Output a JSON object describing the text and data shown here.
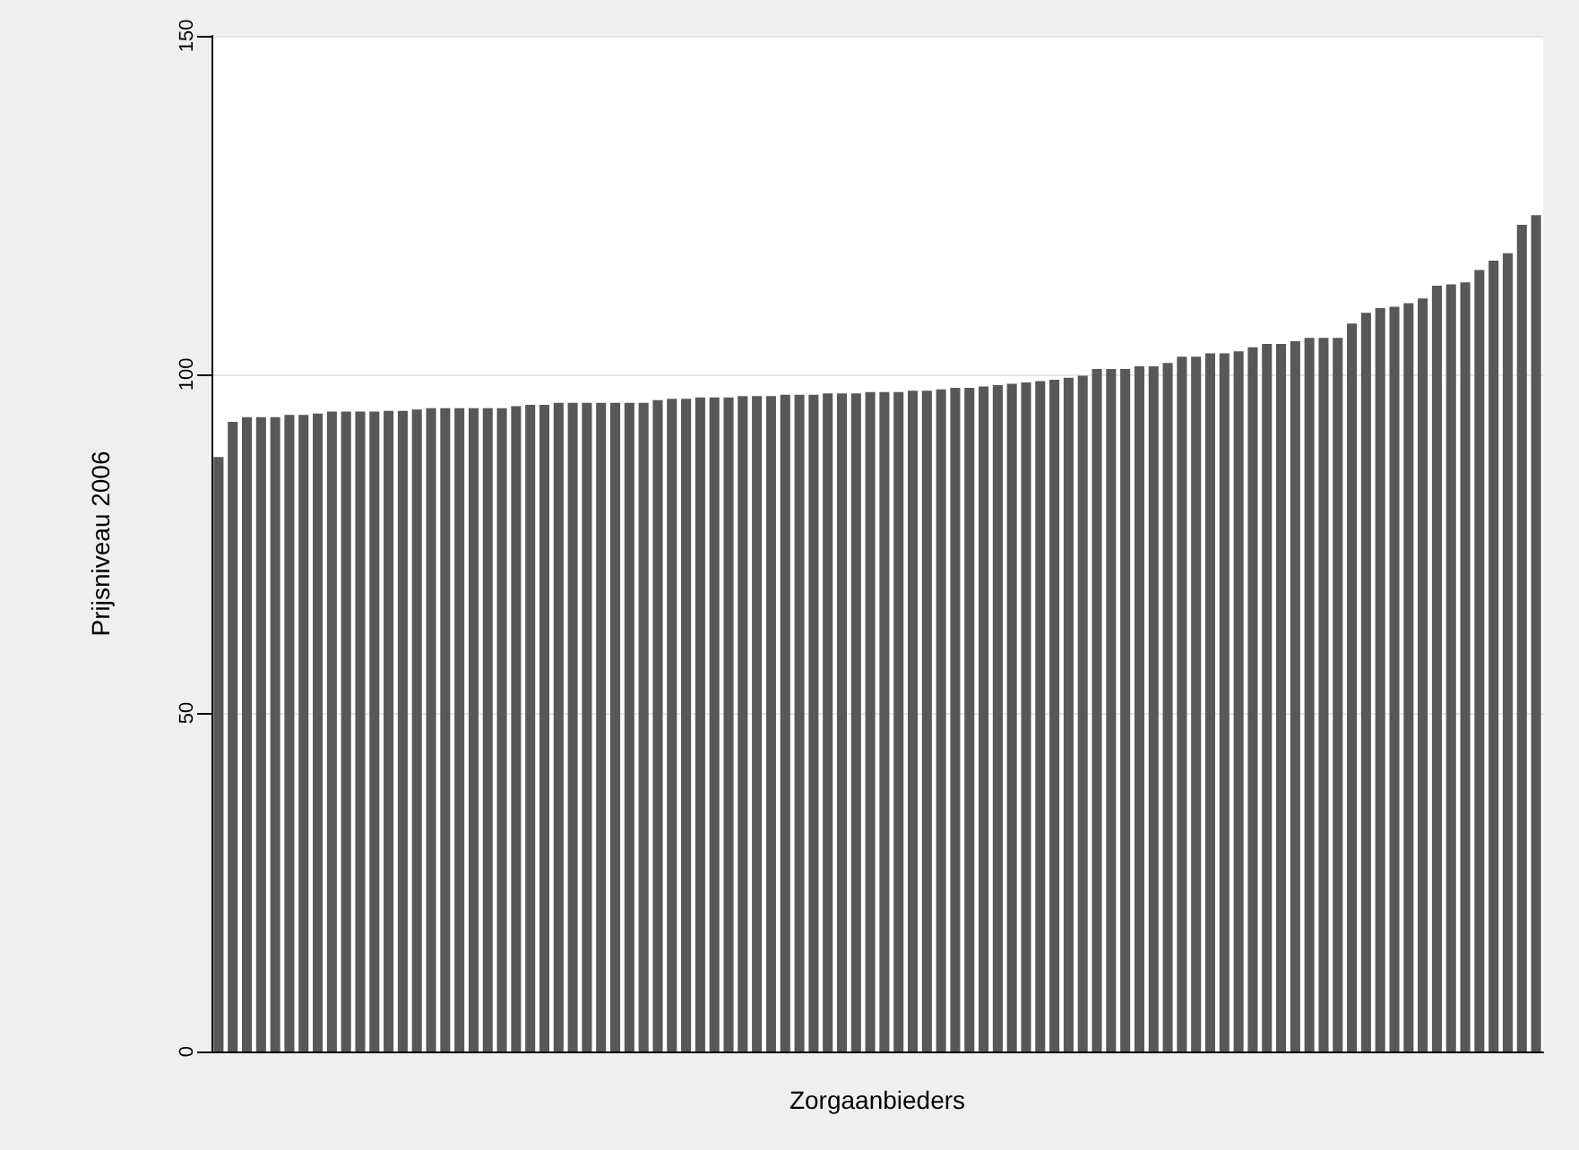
{
  "chart_data": {
    "type": "bar",
    "xlabel": "Zorgaanbieders",
    "ylabel": "Prijsniveau 2006",
    "categories": [
      null,
      null,
      null,
      null,
      null,
      null,
      null,
      null,
      null,
      null,
      null,
      null,
      null,
      null,
      null,
      null,
      null,
      null,
      null,
      null,
      null,
      null,
      null,
      null,
      null,
      null,
      null,
      null,
      null,
      null,
      null,
      null,
      null,
      null,
      null,
      null,
      null,
      null,
      null,
      null,
      null,
      null,
      null,
      null,
      null,
      null,
      null,
      null,
      null,
      null,
      null,
      null,
      null,
      null,
      null,
      null,
      null,
      null,
      null,
      null,
      null,
      null,
      null,
      null,
      null,
      null,
      null,
      null,
      null,
      null,
      null,
      null,
      null,
      null,
      null,
      null,
      null,
      null,
      null,
      null,
      null,
      null,
      null,
      null,
      null,
      null,
      null,
      null,
      null,
      null,
      null,
      null,
      null,
      null
    ],
    "values": [
      87.8,
      93.0,
      93.7,
      93.7,
      93.7,
      94.0,
      94.0,
      94.2,
      94.5,
      94.5,
      94.5,
      94.5,
      94.6,
      94.6,
      94.8,
      95.0,
      95.0,
      95.0,
      95.0,
      95.0,
      95.0,
      95.3,
      95.5,
      95.5,
      95.8,
      95.8,
      95.8,
      95.8,
      95.8,
      95.8,
      95.8,
      96.2,
      96.4,
      96.4,
      96.6,
      96.6,
      96.6,
      96.8,
      96.8,
      96.8,
      97.0,
      97.0,
      97.0,
      97.2,
      97.2,
      97.2,
      97.4,
      97.4,
      97.4,
      97.6,
      97.6,
      97.8,
      98.0,
      98.0,
      98.2,
      98.4,
      98.6,
      98.8,
      99.0,
      99.2,
      99.5,
      99.8,
      100.8,
      100.8,
      100.8,
      101.2,
      101.2,
      101.7,
      102.6,
      102.6,
      103.1,
      103.1,
      103.4,
      104.0,
      104.5,
      104.5,
      104.9,
      105.4,
      105.4,
      105.4,
      107.5,
      109.1,
      109.8,
      110.0,
      110.5,
      111.2,
      113.1,
      113.3,
      113.6,
      115.4,
      116.8,
      117.9,
      122.1,
      123.5
    ],
    "color": "#585858",
    "ylim": [
      0,
      150
    ],
    "yticks": [
      0,
      50,
      100,
      150
    ],
    "grid": "y"
  }
}
